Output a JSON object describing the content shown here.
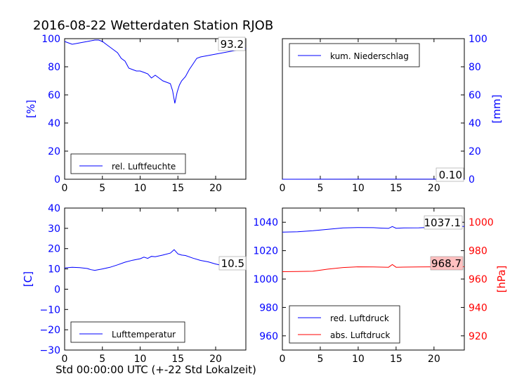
{
  "title": "2016-08-22 Wetterdaten Station RJOB",
  "xlabel": "Std 00:00:00 UTC (+-22 Std Lokalzeit)",
  "colors": {
    "primary": "#0000ff",
    "secondary": "#ff0000",
    "annotation_bg": "#ffc0c0"
  },
  "chart_data": [
    {
      "type": "line",
      "ylabel": "[%]",
      "xlim": [
        0,
        24
      ],
      "ylim": [
        0,
        100
      ],
      "xticks": [
        "0",
        "5",
        "10",
        "15",
        "20"
      ],
      "yticks": [
        "0",
        "20",
        "40",
        "60",
        "80",
        "100"
      ],
      "legend": {
        "placement": "lower-left",
        "entries": [
          "rel. Luftfeuchte"
        ]
      },
      "annotation": "93.2",
      "series": [
        {
          "name": "rel. Luftfeuchte",
          "color": "#0000ff",
          "x": [
            0,
            0.5,
            1,
            2,
            3,
            4,
            4.5,
            5,
            5.5,
            6,
            6.5,
            7,
            7.5,
            8,
            8.5,
            9,
            9.5,
            10,
            10.5,
            11,
            11.5,
            12,
            12.5,
            13,
            13.5,
            14,
            14.3,
            14.6,
            14.9,
            15.2,
            15.5,
            16,
            16.5,
            17,
            17.5,
            18,
            19,
            20,
            21,
            22,
            23,
            24
          ],
          "y": [
            98,
            97,
            96,
            97,
            98,
            99,
            99,
            98,
            96,
            94,
            92,
            90,
            86,
            84,
            79,
            78,
            77,
            77,
            76,
            75,
            72,
            74,
            72,
            70,
            69,
            68,
            63,
            54,
            62,
            67,
            70,
            73,
            78,
            82,
            86,
            87,
            88,
            89,
            90,
            91,
            92,
            93
          ]
        }
      ]
    },
    {
      "type": "line",
      "ylabel": "[mm]",
      "xlim": [
        0,
        24
      ],
      "ylim": [
        0,
        100
      ],
      "xticks": [
        "0",
        "5",
        "10",
        "15",
        "20"
      ],
      "yticks": [
        "0",
        "20",
        "40",
        "60",
        "80",
        "100"
      ],
      "legend": {
        "placement": "top-left",
        "entries": [
          "kum. Niederschlag"
        ]
      },
      "annotation": "0.10",
      "series": [
        {
          "name": "kum. Niederschlag",
          "color": "#0000ff",
          "x": [
            0,
            24
          ],
          "y": [
            0,
            0.1
          ]
        }
      ]
    },
    {
      "type": "line",
      "ylabel": "[C]",
      "xlim": [
        0,
        24
      ],
      "ylim": [
        -30,
        40
      ],
      "xticks": [
        "0",
        "5",
        "10",
        "15",
        "20"
      ],
      "yticks": [
        "−30",
        "−20",
        "−10",
        "0",
        "10",
        "20",
        "30",
        "40"
      ],
      "legend": {
        "placement": "lower-left",
        "entries": [
          "Lufttemperatur"
        ]
      },
      "annotation": "10.5",
      "series": [
        {
          "name": "Lufttemperatur",
          "color": "#0000ff",
          "x": [
            0,
            1,
            2,
            3,
            3.5,
            4,
            5,
            6,
            7,
            8,
            9,
            10,
            10.5,
            11,
            11.5,
            12,
            13,
            14,
            14.5,
            15,
            15.5,
            16,
            17,
            18,
            19,
            20,
            21,
            22,
            23,
            24
          ],
          "y": [
            10.5,
            10.8,
            10.6,
            10.2,
            9.6,
            9.3,
            10.0,
            10.8,
            12.0,
            13.3,
            14.3,
            15.0,
            15.8,
            15.2,
            16.2,
            16.0,
            16.8,
            17.8,
            19.5,
            17.4,
            16.8,
            16.6,
            15.3,
            14.2,
            13.5,
            12.4,
            11.6,
            11.0,
            10.6,
            10.5
          ]
        }
      ]
    },
    {
      "type": "line",
      "ylabel_right": "[hPa]",
      "xlim": [
        0,
        24
      ],
      "ylim_left": [
        950,
        1050
      ],
      "ylim_right": [
        910,
        1010
      ],
      "xticks": [
        "0",
        "5",
        "10",
        "15",
        "20"
      ],
      "yticks_left": [
        "960",
        "980",
        "1000",
        "1020",
        "1040"
      ],
      "yticks_right": [
        "920",
        "940",
        "960",
        "980",
        "1000"
      ],
      "legend": {
        "placement": "lower-left",
        "entries": [
          "red. Luftdruck",
          "abs. Luftdruck"
        ]
      },
      "annotations": [
        "1037.1",
        "968.7"
      ],
      "series": [
        {
          "name": "red. Luftdruck",
          "color": "#0000ff",
          "axis": "left",
          "x": [
            0,
            2,
            4,
            6,
            8,
            10,
            12,
            13,
            14,
            14.5,
            15,
            16,
            18,
            20,
            22,
            24
          ],
          "y": [
            1033.0,
            1033.3,
            1034.0,
            1035.0,
            1036.0,
            1036.3,
            1036.2,
            1035.9,
            1035.7,
            1037.0,
            1035.8,
            1036.0,
            1036.1,
            1036.5,
            1037.0,
            1037.1
          ]
        },
        {
          "name": "abs. Luftdruck",
          "color": "#ff0000",
          "axis": "right",
          "x": [
            0,
            2,
            4,
            6,
            8,
            10,
            12,
            13,
            14,
            14.5,
            15,
            16,
            18,
            20,
            22,
            24
          ],
          "y": [
            965.2,
            965.3,
            965.5,
            967.0,
            968.1,
            968.6,
            968.5,
            968.4,
            968.3,
            970.2,
            968.3,
            968.4,
            968.5,
            968.6,
            968.7,
            968.7
          ]
        }
      ]
    }
  ]
}
